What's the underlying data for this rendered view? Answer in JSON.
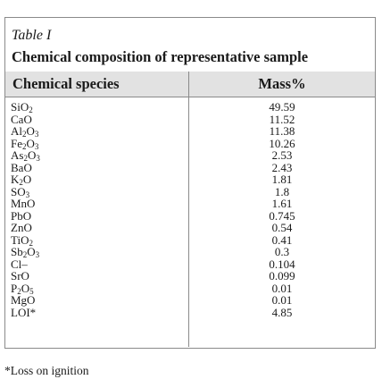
{
  "table": {
    "label": "Table I",
    "caption": "Chemical composition of representative sample",
    "header": {
      "species": "Chemical species",
      "mass": "Mass%"
    },
    "rows": [
      {
        "species": "SiO2",
        "mass": "49.59"
      },
      {
        "species": "CaO",
        "mass": "11.52"
      },
      {
        "species": "Al2O3",
        "mass": "11.38"
      },
      {
        "species": "Fe2O3",
        "mass": "10.26"
      },
      {
        "species": "As2O3",
        "mass": "2.53"
      },
      {
        "species": "BaO",
        "mass": "2.43"
      },
      {
        "species": "K2O",
        "mass": "1.81"
      },
      {
        "species": "SO3",
        "mass": "1.8"
      },
      {
        "species": "MnO",
        "mass": "1.61"
      },
      {
        "species": "PbO",
        "mass": "0.745"
      },
      {
        "species": "ZnO",
        "mass": "0.54"
      },
      {
        "species": "TiO2",
        "mass": "0.41"
      },
      {
        "species": "Sb2O3",
        "mass": "0.3"
      },
      {
        "species": "Cl–",
        "mass": "0.104"
      },
      {
        "species": "SrO",
        "mass": "0.099"
      },
      {
        "species": "P2O5",
        "mass": "0.01"
      },
      {
        "species": "MgO",
        "mass": "0.01"
      },
      {
        "species": "LOI*",
        "mass": "4.85"
      }
    ],
    "footnote": "*Loss on ignition"
  },
  "colors": {
    "border": "#8a8a8a",
    "header_background": "#e2e2e2",
    "text": "#1a1a1a"
  }
}
